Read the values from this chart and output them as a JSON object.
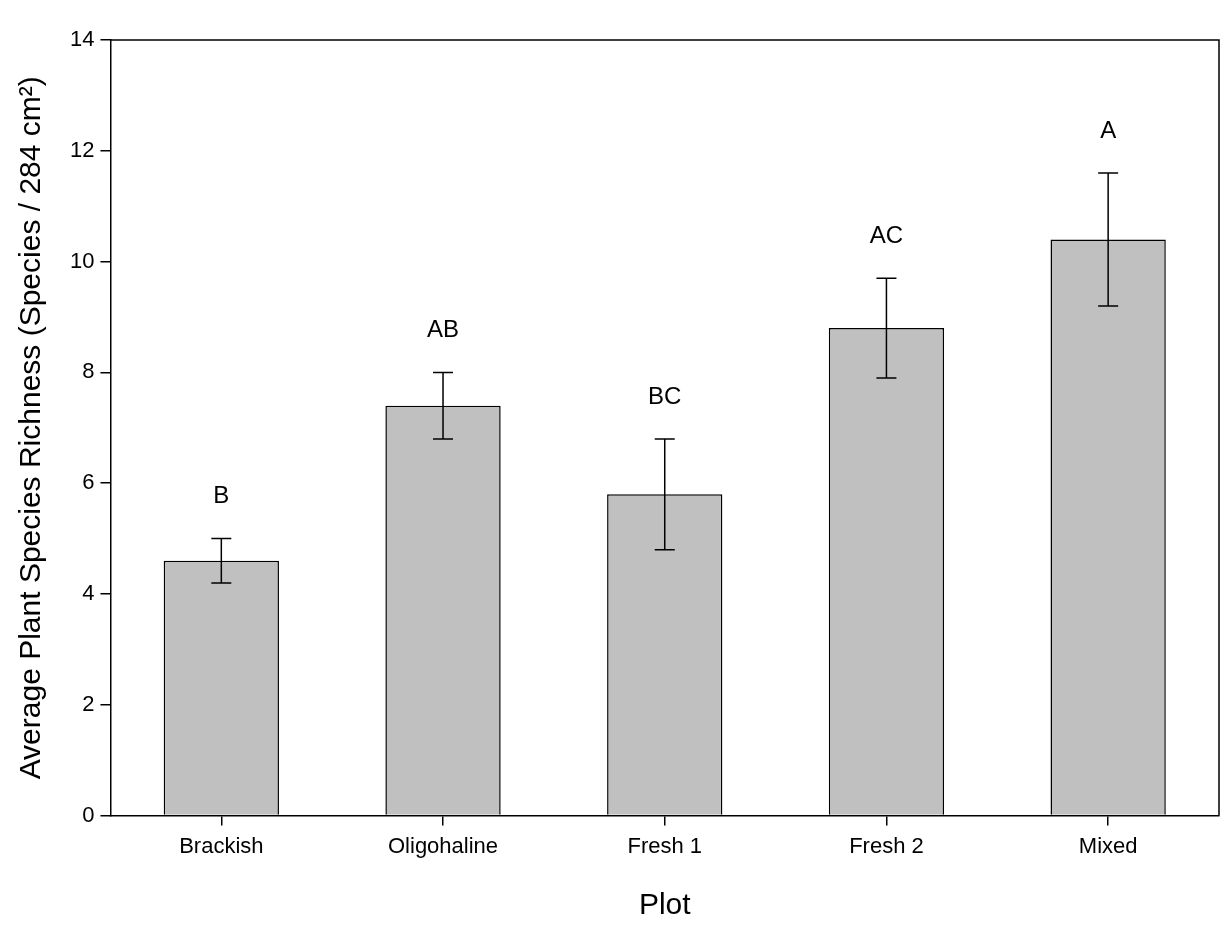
{
  "chart_data": {
    "type": "bar",
    "xlabel": "Plot",
    "ylabel": "Average Plant Species Richness (Species / 284 cm²)",
    "categories": [
      "Brackish",
      "Oligohaline",
      "Fresh 1",
      "Fresh 2",
      "Mixed"
    ],
    "values": [
      4.6,
      7.4,
      5.8,
      8.8,
      10.4
    ],
    "errors": [
      0.4,
      0.6,
      1.0,
      0.9,
      1.2
    ],
    "color": "#c0c0c0",
    "ylim": [
      0,
      14
    ],
    "yticks": [
      0,
      2,
      4,
      6,
      8,
      10,
      12,
      14
    ],
    "grid": false,
    "legend": false,
    "annotations": [
      "B",
      "AB",
      "BC",
      "AC",
      "A"
    ]
  }
}
